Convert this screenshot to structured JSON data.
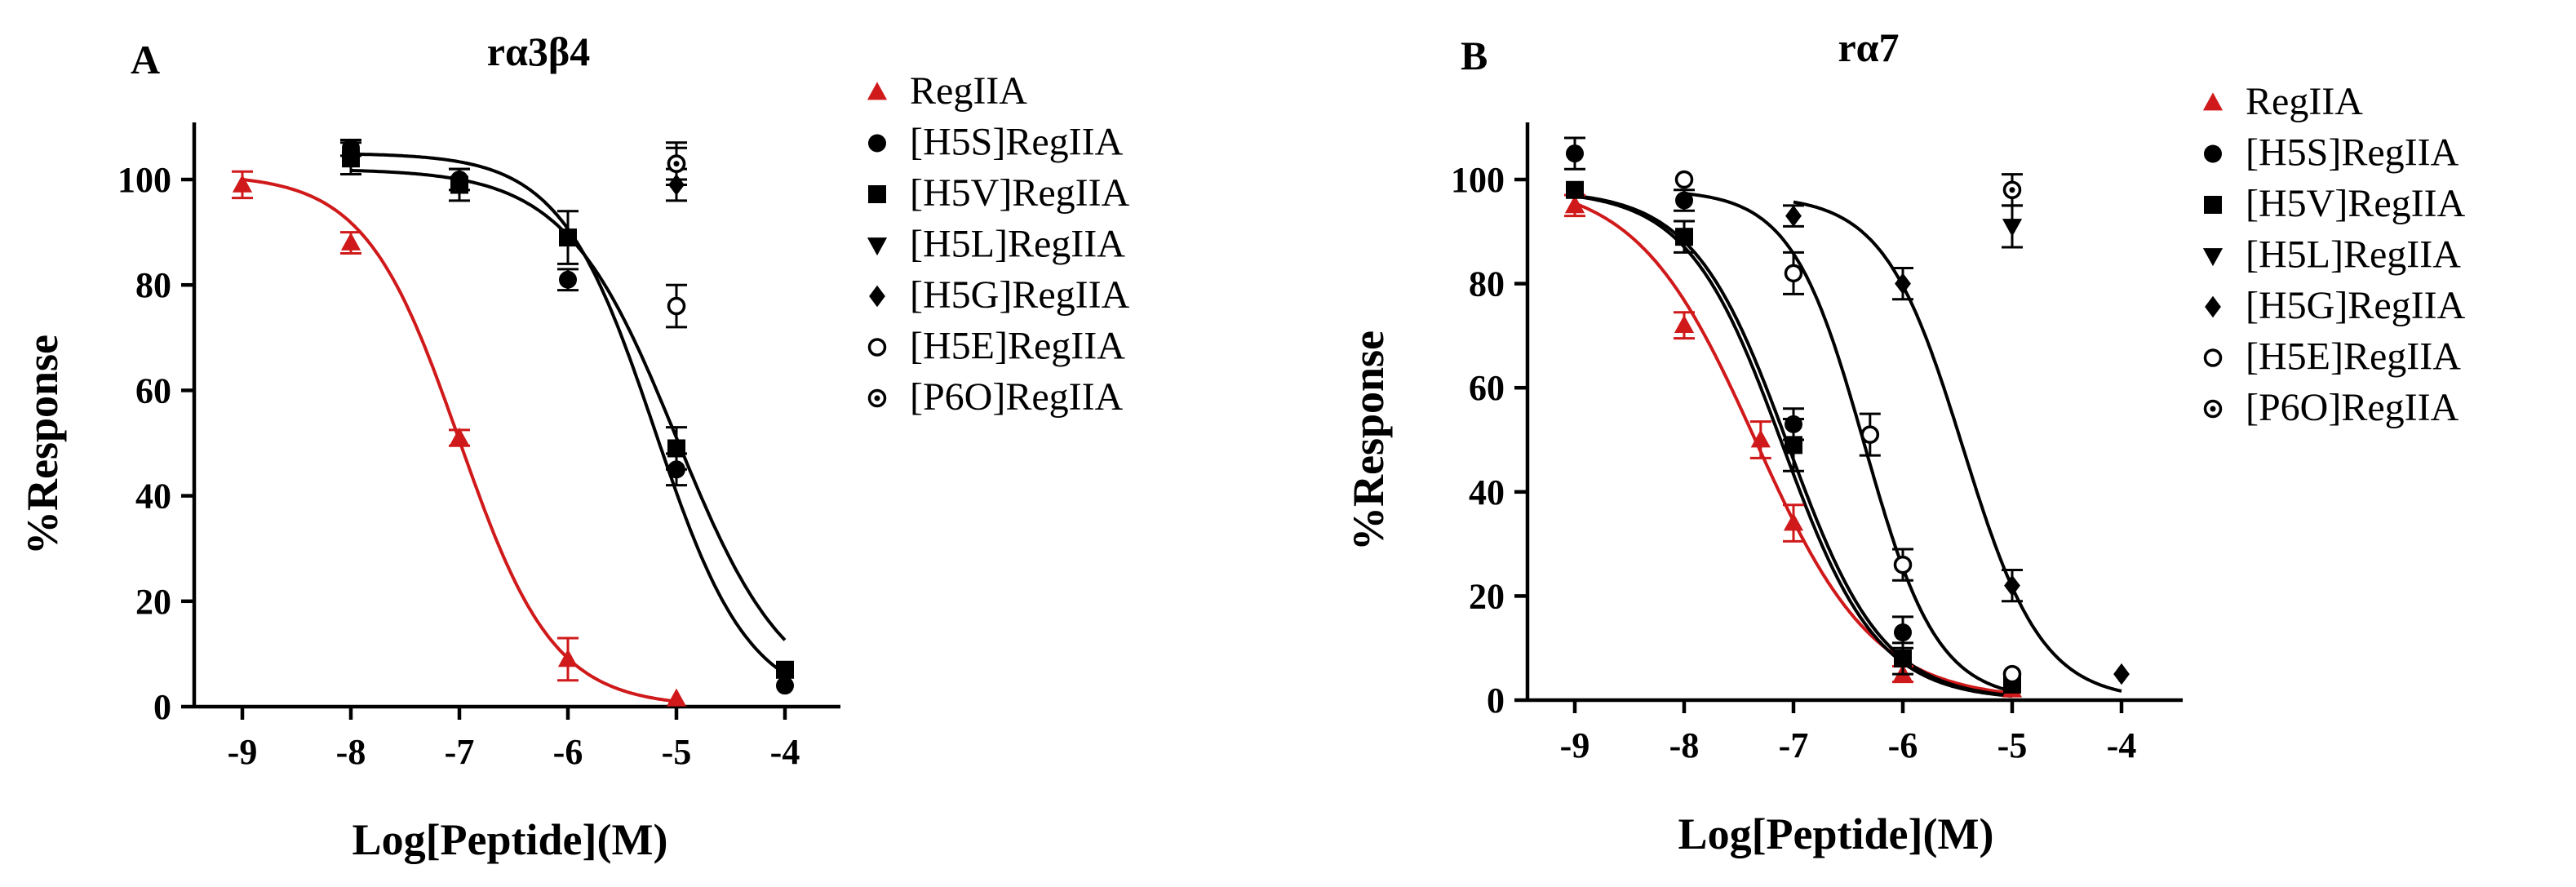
{
  "chart_data": [
    {
      "type": "scatter",
      "panel": "A",
      "title": "rα3β4",
      "xlabel": "Log[Peptide](M)",
      "ylabel": "%Response",
      "xlim": [
        -9.5,
        -3.5
      ],
      "ylim": [
        0,
        110
      ],
      "xticks": [
        -9,
        -8,
        -7,
        -6,
        -5,
        -4
      ],
      "yticks": [
        0,
        20,
        40,
        60,
        80,
        100
      ],
      "grid": false,
      "legend_position": "right",
      "colors": {
        "RegIIA": "#d0191a",
        "other": "#000000"
      },
      "series": [
        {
          "name": "RegIIA",
          "marker": "triangle-up",
          "color": "#d0191a",
          "x": [
            -9,
            -8,
            -7,
            -6,
            -5
          ],
          "y": [
            99,
            88,
            51,
            9,
            1.5
          ],
          "err": [
            2.5,
            2,
            1.5,
            4,
            0
          ],
          "fit": {
            "logIC50": -7.0,
            "hill": 1.0,
            "top": 101,
            "bottom": 0
          }
        },
        {
          "name": "[H5S]RegIIA",
          "marker": "circle-filled",
          "color": "#000000",
          "x": [
            -8,
            -7,
            -6,
            -5,
            -4
          ],
          "y": [
            106,
            100,
            81,
            45,
            4
          ],
          "err": [
            1.5,
            2,
            2,
            3,
            0
          ],
          "fit": {
            "logIC50": -5.0,
            "hill": 0.85,
            "top": 102,
            "bottom": 0
          }
        },
        {
          "name": "[H5V]RegIIA",
          "marker": "square-filled",
          "color": "#000000",
          "x": [
            -8,
            -7,
            -6,
            -5,
            -4
          ],
          "y": [
            104,
            99,
            89,
            49,
            7
          ],
          "err": [
            3,
            3,
            5,
            4,
            0
          ],
          "fit": {
            "logIC50": -5.2,
            "hill": 1.0,
            "top": 105,
            "bottom": 0
          }
        },
        {
          "name": "[H5L]RegIIA",
          "marker": "triangle-down",
          "color": "#000000",
          "x": [],
          "y": [],
          "err": []
        },
        {
          "name": "[H5G]RegIIA",
          "marker": "diamond-filled",
          "color": "#000000",
          "x": [
            -5
          ],
          "y": [
            99
          ],
          "err": [
            3
          ]
        },
        {
          "name": "[H5E]RegIIA",
          "marker": "circle-open",
          "color": "#000000",
          "x": [
            -5,
            -5
          ],
          "y": [
            103,
            76
          ],
          "err": [
            4,
            4
          ]
        },
        {
          "name": "[P6O]RegIIA",
          "marker": "circle-dot",
          "color": "#000000",
          "x": [
            -5
          ],
          "y": [
            103
          ],
          "err": [
            3
          ]
        }
      ]
    },
    {
      "type": "scatter",
      "panel": "B",
      "title": "rα7",
      "xlabel": "Log[Peptide](M)",
      "ylabel": "%Response",
      "xlim": [
        -9.5,
        -3.5
      ],
      "ylim": [
        0,
        110
      ],
      "xticks": [
        -9,
        -8,
        -7,
        -6,
        -5,
        -4
      ],
      "yticks": [
        0,
        20,
        40,
        60,
        80,
        100
      ],
      "grid": false,
      "legend_position": "right",
      "colors": {
        "RegIIA": "#d0191a",
        "other": "#000000"
      },
      "series": [
        {
          "name": "RegIIA",
          "marker": "triangle-up",
          "color": "#d0191a",
          "x": [
            -9,
            -8,
            -7.3,
            -7,
            -6,
            -5
          ],
          "y": [
            95,
            72,
            50,
            34,
            5,
            2
          ],
          "err": [
            2,
            2.5,
            3.5,
            3.5,
            1.5,
            0
          ],
          "fit": {
            "logIC50": -7.35,
            "hill": 0.8,
            "top": 100,
            "bottom": 0
          }
        },
        {
          "name": "[H5S]RegIIA",
          "marker": "circle-filled",
          "color": "#000000",
          "x": [
            -9,
            -8,
            -7,
            -6,
            -5
          ],
          "y": [
            105,
            96,
            53,
            13,
            3
          ],
          "err": [
            3,
            2,
            3,
            3,
            0
          ],
          "fit": {
            "logIC50": -7.05,
            "hill": 1.0,
            "top": 98,
            "bottom": 0
          }
        },
        {
          "name": "[H5V]RegIIA",
          "marker": "square-filled",
          "color": "#000000",
          "x": [
            -9,
            -8,
            -7,
            -6,
            -5
          ],
          "y": [
            98,
            89,
            49,
            8,
            3
          ],
          "err": [
            0,
            3,
            5,
            3,
            0
          ],
          "fit": {
            "logIC50": -7.1,
            "hill": 1.0,
            "top": 98,
            "bottom": 0
          }
        },
        {
          "name": "[H5L]RegIIA",
          "marker": "triangle-down",
          "color": "#000000",
          "x": [
            -5
          ],
          "y": [
            91
          ],
          "err": [
            4
          ]
        },
        {
          "name": "[H5G]RegIIA",
          "marker": "diamond-filled",
          "color": "#000000",
          "x": [
            -7,
            -6,
            -5,
            -4
          ],
          "y": [
            93,
            80,
            22,
            5
          ],
          "err": [
            2,
            3,
            3,
            0
          ],
          "fit": {
            "logIC50": -5.45,
            "hill": 1.2,
            "top": 97,
            "bottom": 0
          }
        },
        {
          "name": "[H5E]RegIIA",
          "marker": "circle-open",
          "color": "#000000",
          "x": [
            -8,
            -7,
            -6.3,
            -6,
            -5
          ],
          "y": [
            100,
            82,
            51,
            26,
            5
          ],
          "err": [
            0,
            4,
            4,
            3,
            0
          ],
          "fit": {
            "logIC50": -6.35,
            "hill": 1.3,
            "top": 98,
            "bottom": 0
          }
        },
        {
          "name": "[P6O]RegIIA",
          "marker": "circle-dot",
          "color": "#000000",
          "x": [
            -5
          ],
          "y": [
            98
          ],
          "err": [
            3
          ]
        }
      ]
    }
  ]
}
